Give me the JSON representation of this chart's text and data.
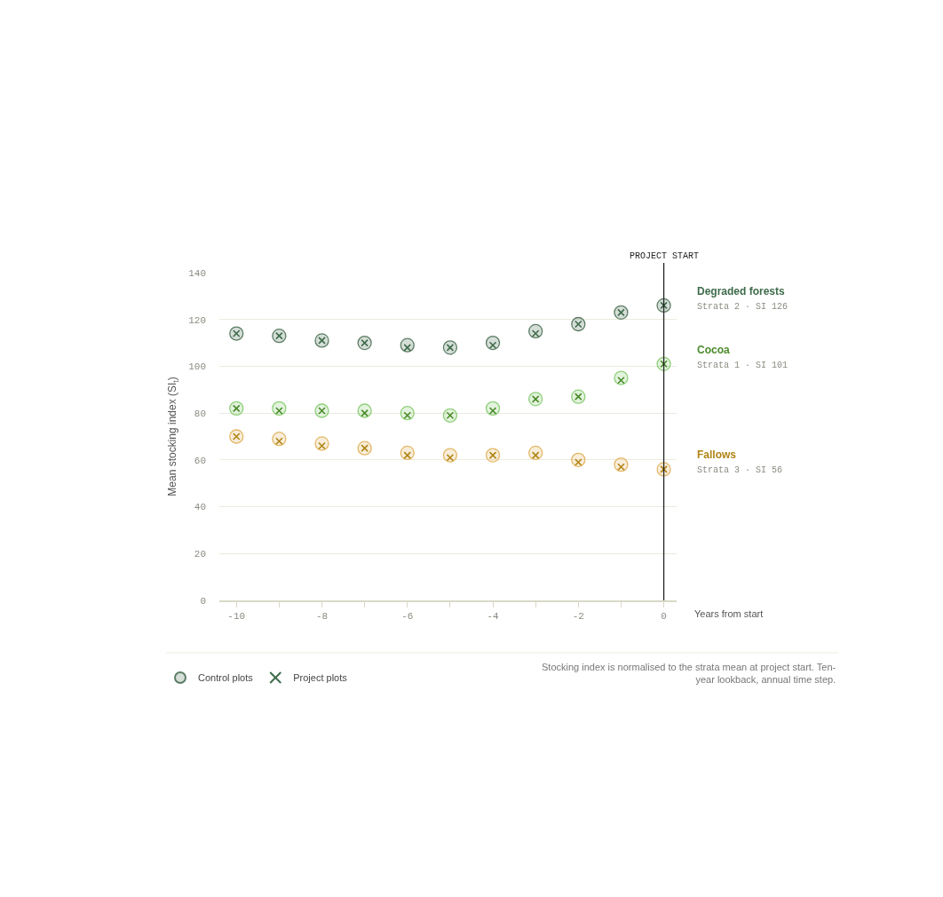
{
  "chart_data": {
    "type": "scatter",
    "xlabel": "Years from start",
    "ylabel": "Mean stocking index (SI$_{t}$)",
    "x": [
      -10,
      -9,
      -8,
      -7,
      -6,
      -5,
      -4,
      -3,
      -2,
      -1,
      0
    ],
    "series": [
      {
        "name": "Control plots",
        "color": "#5b7d64",
        "marker": "circle",
        "values": [
          114,
          113,
          111,
          110,
          109,
          108,
          110,
          115,
          118,
          123,
          126
        ]
      },
      {
        "name": "Project plots",
        "color": "#3d6b4a",
        "marker": "cross",
        "values": [
          114,
          113,
          111,
          110,
          108,
          108,
          109,
          114,
          118,
          123,
          126
        ]
      },
      {
        "color": "#8fcf7a",
        "marker": "circle",
        "values": [
          82,
          82,
          81,
          81,
          80,
          79,
          82,
          86,
          87,
          95,
          101
        ]
      },
      {
        "color": "#4a8a2a",
        "marker": "cross",
        "values": [
          82,
          81,
          81,
          80,
          79,
          79,
          81,
          86,
          87,
          94,
          101
        ]
      },
      {
        "color": "#e3b868",
        "marker": "circle",
        "values": [
          70,
          69,
          67,
          65,
          63,
          62,
          62,
          63,
          60,
          58,
          56
        ]
      },
      {
        "color": "#b08414",
        "marker": "cross",
        "values": [
          70,
          68,
          66,
          65,
          62,
          61,
          62,
          62,
          59,
          57,
          56
        ]
      }
    ],
    "xlim": [
      -10.4,
      0.3
    ],
    "ylim": [
      0,
      140
    ],
    "xticks": [
      -10,
      {
        "value": -9,
        "label": null
      },
      -8,
      {
        "value": -7,
        "label": null
      },
      -6,
      {
        "value": -5,
        "label": null
      },
      -4,
      {
        "value": -3,
        "label": null
      },
      -2,
      {
        "value": -1,
        "label": null
      },
      0
    ],
    "yticks": [
      0,
      20,
      40,
      60,
      80,
      100,
      120,
      140
    ],
    "grid": "y",
    "legend": "bottom left",
    "ref_lines": [
      {
        "axis": "x",
        "value": 0,
        "label": "PROJECT START",
        "color": "#222222"
      }
    ],
    "annotations": [
      "Degraded forests\nStrata 2 · SI 126",
      "Cocoa\nStrata 1 · SI 101",
      "Fallows\nStrata 3 · SI 56",
      "Stocking index is normalised to the strata mean at project start. Ten-\nyear lookback, annual time step."
    ]
  }
}
